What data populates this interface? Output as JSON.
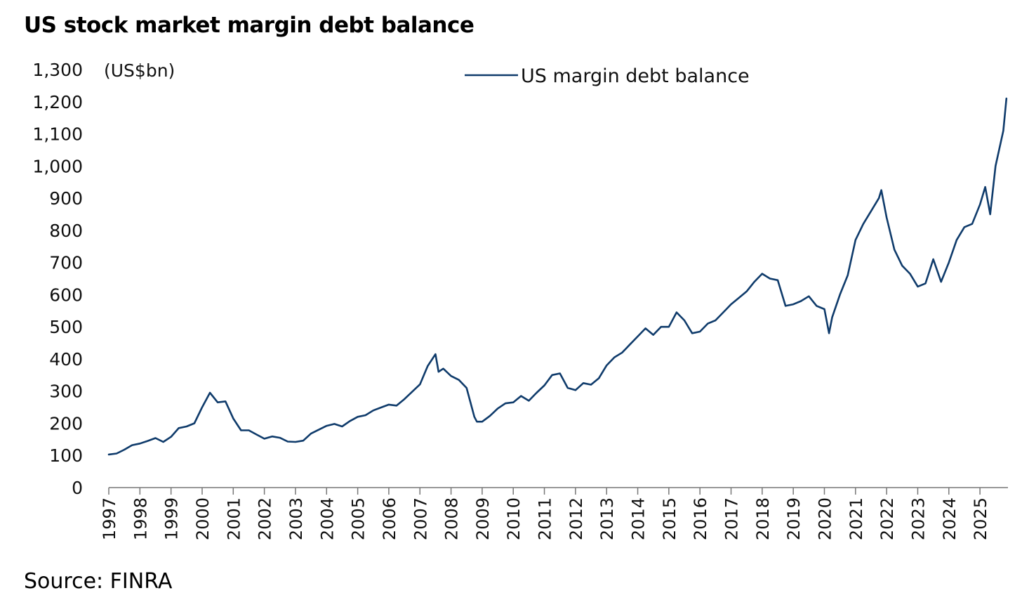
{
  "chart_data": {
    "type": "line",
    "title": "US stock market margin debt balance",
    "source": "Source: FINRA",
    "ylabel": "(US$bn)",
    "ylim": [
      0,
      1300
    ],
    "yticks": [
      0,
      100,
      200,
      300,
      400,
      500,
      600,
      700,
      800,
      900,
      1000,
      1100,
      1200,
      1300
    ],
    "ytick_labels": [
      "0",
      "100",
      "200",
      "300",
      "400",
      "500",
      "600",
      "700",
      "800",
      "900",
      "1,000",
      "1,100",
      "1,200",
      "1,300"
    ],
    "xlim": [
      1997,
      2025.9
    ],
    "xticks": [
      1997,
      1998,
      1999,
      2000,
      2001,
      2002,
      2003,
      2004,
      2005,
      2006,
      2007,
      2008,
      2009,
      2010,
      2011,
      2012,
      2013,
      2014,
      2015,
      2016,
      2017,
      2018,
      2019,
      2020,
      2021,
      2022,
      2023,
      2024,
      2025
    ],
    "xtick_labels": [
      "1997",
      "1998",
      "1999",
      "2000",
      "2001",
      "2002",
      "2003",
      "2004",
      "2005",
      "2006",
      "2007",
      "2008",
      "2009",
      "2010",
      "2011",
      "2012",
      "2013",
      "2014",
      "2015",
      "2016",
      "2017",
      "2018",
      "2019",
      "2020",
      "2021",
      "2022",
      "2023",
      "2024",
      "2025"
    ],
    "grid": false,
    "legend_position": "top-center",
    "series_color": "#0f3b6b",
    "series": [
      {
        "name": "US margin debt balance",
        "x": [
          1997.0,
          1997.25,
          1997.5,
          1997.75,
          1998.0,
          1998.25,
          1998.5,
          1998.75,
          1999.0,
          1999.25,
          1999.5,
          1999.75,
          2000.0,
          2000.25,
          2000.5,
          2000.75,
          2001.0,
          2001.25,
          2001.5,
          2001.75,
          2002.0,
          2002.25,
          2002.5,
          2002.75,
          2003.0,
          2003.25,
          2003.5,
          2003.75,
          2004.0,
          2004.25,
          2004.5,
          2004.75,
          2005.0,
          2005.25,
          2005.5,
          2005.75,
          2006.0,
          2006.25,
          2006.5,
          2006.75,
          2007.0,
          2007.25,
          2007.5,
          2007.6,
          2007.75,
          2008.0,
          2008.25,
          2008.5,
          2008.75,
          2008.83,
          2009.0,
          2009.25,
          2009.5,
          2009.75,
          2010.0,
          2010.25,
          2010.5,
          2010.75,
          2011.0,
          2011.25,
          2011.5,
          2011.75,
          2012.0,
          2012.25,
          2012.5,
          2012.75,
          2013.0,
          2013.25,
          2013.5,
          2013.75,
          2014.0,
          2014.25,
          2014.5,
          2014.75,
          2015.0,
          2015.25,
          2015.5,
          2015.75,
          2016.0,
          2016.25,
          2016.5,
          2016.75,
          2017.0,
          2017.25,
          2017.5,
          2017.75,
          2018.0,
          2018.25,
          2018.5,
          2018.75,
          2019.0,
          2019.25,
          2019.5,
          2019.75,
          2020.0,
          2020.15,
          2020.25,
          2020.5,
          2020.75,
          2021.0,
          2021.25,
          2021.5,
          2021.75,
          2021.83,
          2022.0,
          2022.25,
          2022.5,
          2022.75,
          2023.0,
          2023.25,
          2023.5,
          2023.75,
          2024.0,
          2024.25,
          2024.5,
          2024.75,
          2025.0,
          2025.17,
          2025.33,
          2025.5,
          2025.75,
          2025.85
        ],
        "values": [
          103,
          106,
          118,
          132,
          137,
          145,
          154,
          142,
          158,
          185,
          190,
          200,
          250,
          295,
          265,
          268,
          215,
          178,
          178,
          165,
          152,
          159,
          155,
          143,
          142,
          146,
          168,
          180,
          192,
          198,
          190,
          207,
          220,
          225,
          240,
          249,
          258,
          255,
          275,
          298,
          321,
          378,
          415,
          360,
          370,
          347,
          335,
          310,
          220,
          205,
          205,
          223,
          246,
          262,
          265,
          285,
          270,
          295,
          318,
          350,
          355,
          310,
          303,
          325,
          320,
          340,
          380,
          405,
          420,
          445,
          470,
          495,
          475,
          500,
          500,
          545,
          520,
          480,
          485,
          510,
          520,
          545,
          570,
          590,
          610,
          640,
          665,
          650,
          645,
          565,
          570,
          580,
          595,
          565,
          555,
          480,
          530,
          600,
          660,
          770,
          820,
          860,
          900,
          925,
          840,
          740,
          690,
          665,
          625,
          635,
          710,
          640,
          700,
          770,
          810,
          820,
          880,
          935,
          850,
          1000,
          1110,
          1210
        ]
      }
    ]
  }
}
